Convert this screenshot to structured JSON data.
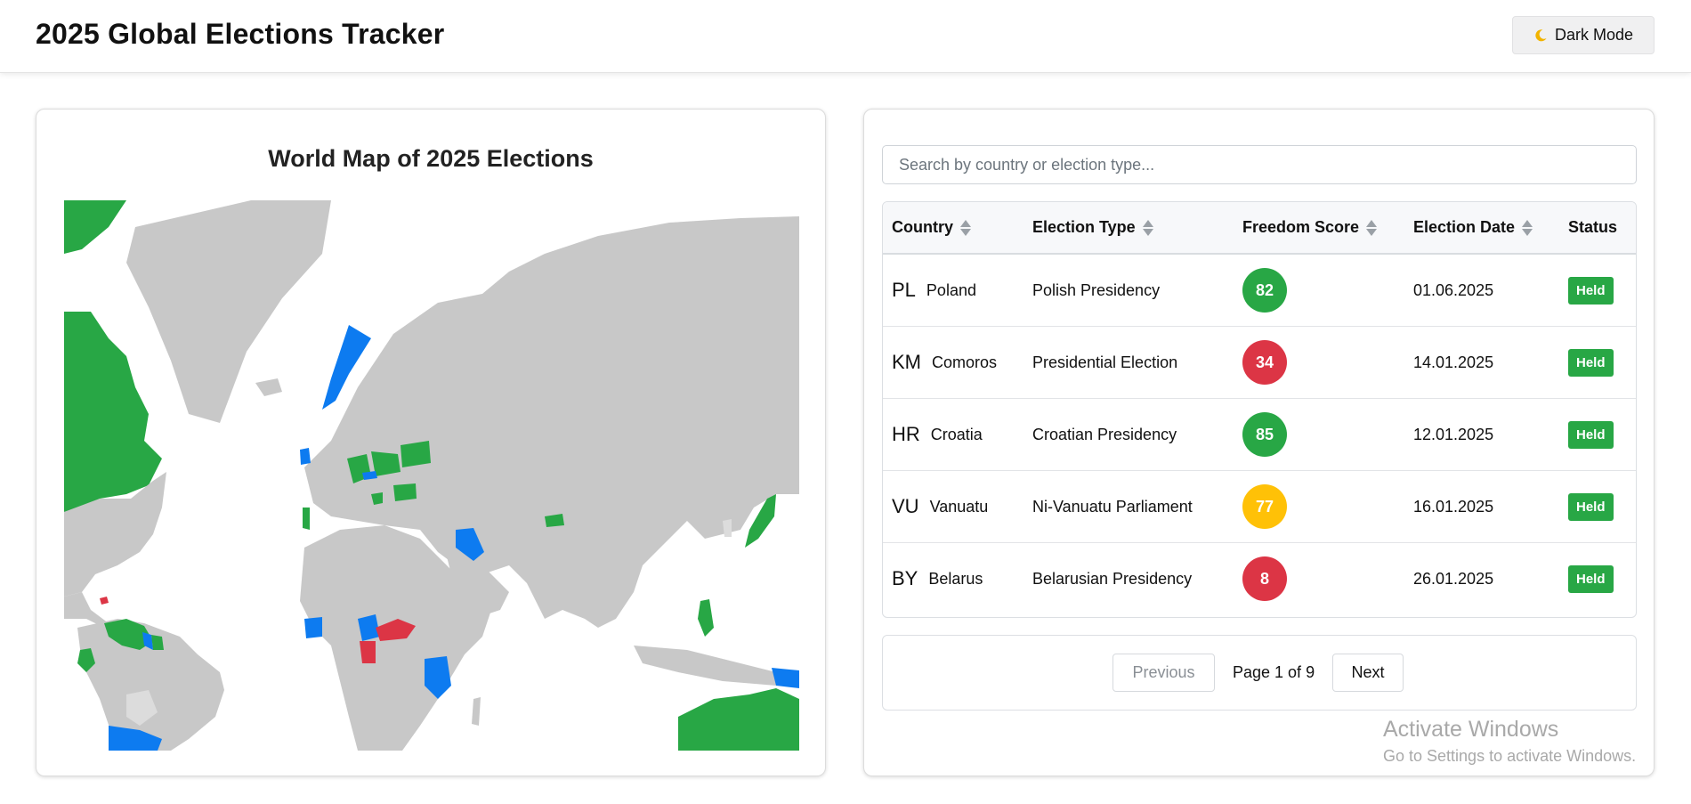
{
  "header": {
    "title": "2025 Global Elections Tracker",
    "dark_mode_label": "Dark Mode",
    "dark_mode_icon": "moon-icon"
  },
  "map": {
    "title": "World Map of 2025 Elections",
    "colors": {
      "land": "#c8c8c8",
      "green": "#28a745",
      "blue": "#0d7bf0",
      "red": "#dc3545"
    }
  },
  "search": {
    "placeholder": "Search by country or election type...",
    "value": ""
  },
  "table": {
    "columns": [
      {
        "label": "Country",
        "sortable": true
      },
      {
        "label": "Election Type",
        "sortable": true
      },
      {
        "label": "Freedom Score",
        "sortable": true
      },
      {
        "label": "Election Date",
        "sortable": true
      },
      {
        "label": "Status",
        "sortable": false
      }
    ],
    "rows": [
      {
        "code": "PL",
        "country": "Poland",
        "type": "Polish Presidency",
        "score": "82",
        "score_color": "#28a745",
        "date": "01.06.2025",
        "status": "Held"
      },
      {
        "code": "KM",
        "country": "Comoros",
        "type": "Presidential Election",
        "score": "34",
        "score_color": "#dc3545",
        "date": "14.01.2025",
        "status": "Held"
      },
      {
        "code": "HR",
        "country": "Croatia",
        "type": "Croatian Presidency",
        "score": "85",
        "score_color": "#28a745",
        "date": "12.01.2025",
        "status": "Held"
      },
      {
        "code": "VU",
        "country": "Vanuatu",
        "type": "Ni-Vanuatu Parliament",
        "score": "77",
        "score_color": "#ffc107",
        "date": "16.01.2025",
        "status": "Held"
      },
      {
        "code": "BY",
        "country": "Belarus",
        "type": "Belarusian Presidency",
        "score": "8",
        "score_color": "#dc3545",
        "date": "26.01.2025",
        "status": "Held"
      }
    ]
  },
  "pagination": {
    "previous": "Previous",
    "info": "Page 1 of 9",
    "next": "Next",
    "previous_disabled": true
  },
  "watermark": {
    "line1": "Activate Windows",
    "line2": "Go to Settings to activate Windows."
  }
}
